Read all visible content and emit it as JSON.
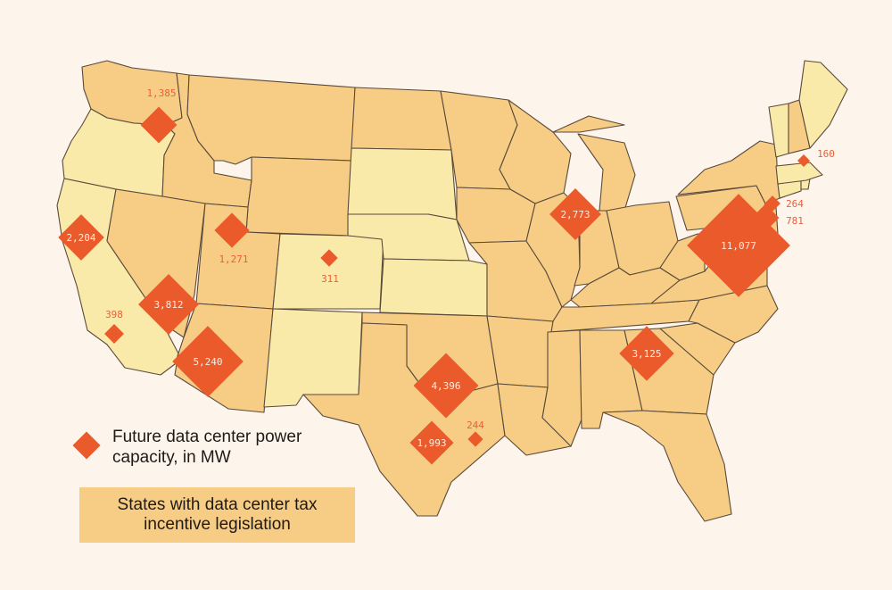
{
  "colors": {
    "background": "#fdf4ec",
    "incentive_state": "#f7cd85",
    "other_state": "#faeaaa",
    "marker": "#ea5a2b",
    "border": "#5a4a3a"
  },
  "legend": {
    "marker_label": "Future data center power capacity, in MW",
    "incentive_label": "States with data center tax incentive legislation"
  },
  "chart_data": {
    "type": "map",
    "units": "MW",
    "tax_incentive_states": [
      "WA",
      "ID",
      "MT",
      "WY",
      "NV",
      "UT",
      "AZ",
      "TX",
      "OK",
      "ND",
      "MN",
      "IA",
      "MO",
      "AR",
      "LA",
      "MS",
      "AL",
      "GA",
      "FL",
      "SC",
      "NC",
      "TN",
      "KY",
      "IL",
      "IN",
      "OH",
      "MI",
      "WI",
      "PA",
      "NY",
      "VA",
      "WV",
      "MD",
      "NJ",
      "NH"
    ],
    "markers": [
      {
        "state": "WA",
        "value": "1,385"
      },
      {
        "state": "CA (north)",
        "value": "2,204"
      },
      {
        "state": "UT",
        "value": "1,271"
      },
      {
        "state": "CO",
        "value": "311"
      },
      {
        "state": "NV",
        "value": "3,812"
      },
      {
        "state": "CA (south)",
        "value": "398"
      },
      {
        "state": "AZ",
        "value": "5,240"
      },
      {
        "state": "TX (north)",
        "value": "4,396"
      },
      {
        "state": "TX (central)",
        "value": "1,993"
      },
      {
        "state": "TX (Houston)",
        "value": "244"
      },
      {
        "state": "IL",
        "value": "2,773"
      },
      {
        "state": "GA",
        "value": "3,125"
      },
      {
        "state": "VA",
        "value": "11,077"
      },
      {
        "state": "NJ",
        "value": "264"
      },
      {
        "state": "MD",
        "value": "781"
      },
      {
        "state": "MA",
        "value": "160"
      }
    ]
  }
}
